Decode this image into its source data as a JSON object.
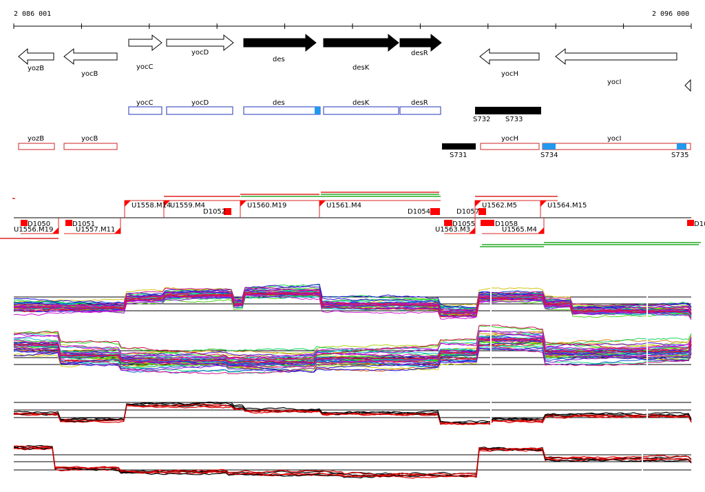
{
  "ruler": {
    "start": "2 086 001",
    "end": "2 096 000"
  },
  "genes": [
    {
      "name": "yozB",
      "strand": "-",
      "filled": false
    },
    {
      "name": "yocB",
      "strand": "-",
      "filled": false
    },
    {
      "name": "yocC",
      "strand": "+",
      "filled": false
    },
    {
      "name": "yocD",
      "strand": "+",
      "filled": false
    },
    {
      "name": "des",
      "strand": "+",
      "filled": true
    },
    {
      "name": "desK",
      "strand": "+",
      "filled": true
    },
    {
      "name": "desR",
      "strand": "+",
      "filled": true
    },
    {
      "name": "yocH",
      "strand": "-",
      "filled": false
    },
    {
      "name": "yocI",
      "strand": "-",
      "filled": false
    }
  ],
  "forward_boxes": [
    "yocC",
    "yocD",
    "des",
    "desK",
    "desR"
  ],
  "reverse_boxes": [
    "yozB",
    "yocB",
    "yocH",
    "yocI"
  ],
  "segments": [
    "S731",
    "S732",
    "S733",
    "S734",
    "S735"
  ],
  "feature_labels_top": [
    "U1558.M14",
    "U1559.M4",
    "D1052",
    "U1560.M19",
    "U1561.M4",
    "D1054",
    "D1057",
    "U1562.M5",
    "U1564.M15"
  ],
  "feature_labels_bottom": [
    "D1050",
    "U1556.M19",
    "D1051",
    "U1557.M11",
    "D1055",
    "U1563.M3",
    "D1058",
    "U1565.M4",
    "D10"
  ],
  "colors": {
    "forward": "#2233bb",
    "reverse": "#cc2222",
    "marker": "#ff0000",
    "highlight": "#2299ee",
    "green": "#22aa22"
  }
}
